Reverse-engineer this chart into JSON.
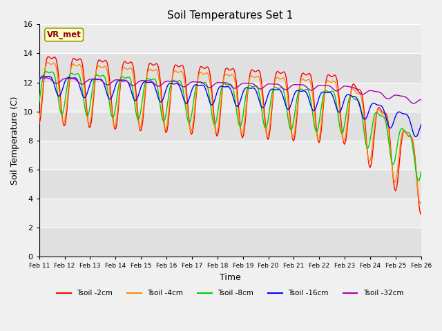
{
  "title": "Soil Temperatures Set 1",
  "xlabel": "Time",
  "ylabel": "Soil Temperature (C)",
  "ylim": [
    0,
    16
  ],
  "yticks": [
    0,
    2,
    4,
    6,
    8,
    10,
    12,
    14,
    16
  ],
  "x_labels": [
    "Feb 11",
    "Feb 12",
    "Feb 13",
    "Feb 14",
    "Feb 15",
    "Feb 16",
    "Feb 17",
    "Feb 18",
    "Feb 19",
    "Feb 20",
    "Feb 21",
    "Feb 22",
    "Feb 23",
    "Feb 24",
    "Feb 25",
    "Feb 26"
  ],
  "plot_bg": "#ebebeb",
  "legend_label": "VR_met",
  "series_colors": [
    "#ff0000",
    "#ff8c00",
    "#00cc00",
    "#0000ff",
    "#aa00aa"
  ],
  "series_labels": [
    "Tsoil -2cm",
    "Tsoil -4cm",
    "Tsoil -8cm",
    "Tsoil -16cm",
    "Tsoil -32cm"
  ],
  "n_points": 360,
  "band_colors": [
    "#e0e0e0",
    "#ebebeb"
  ]
}
